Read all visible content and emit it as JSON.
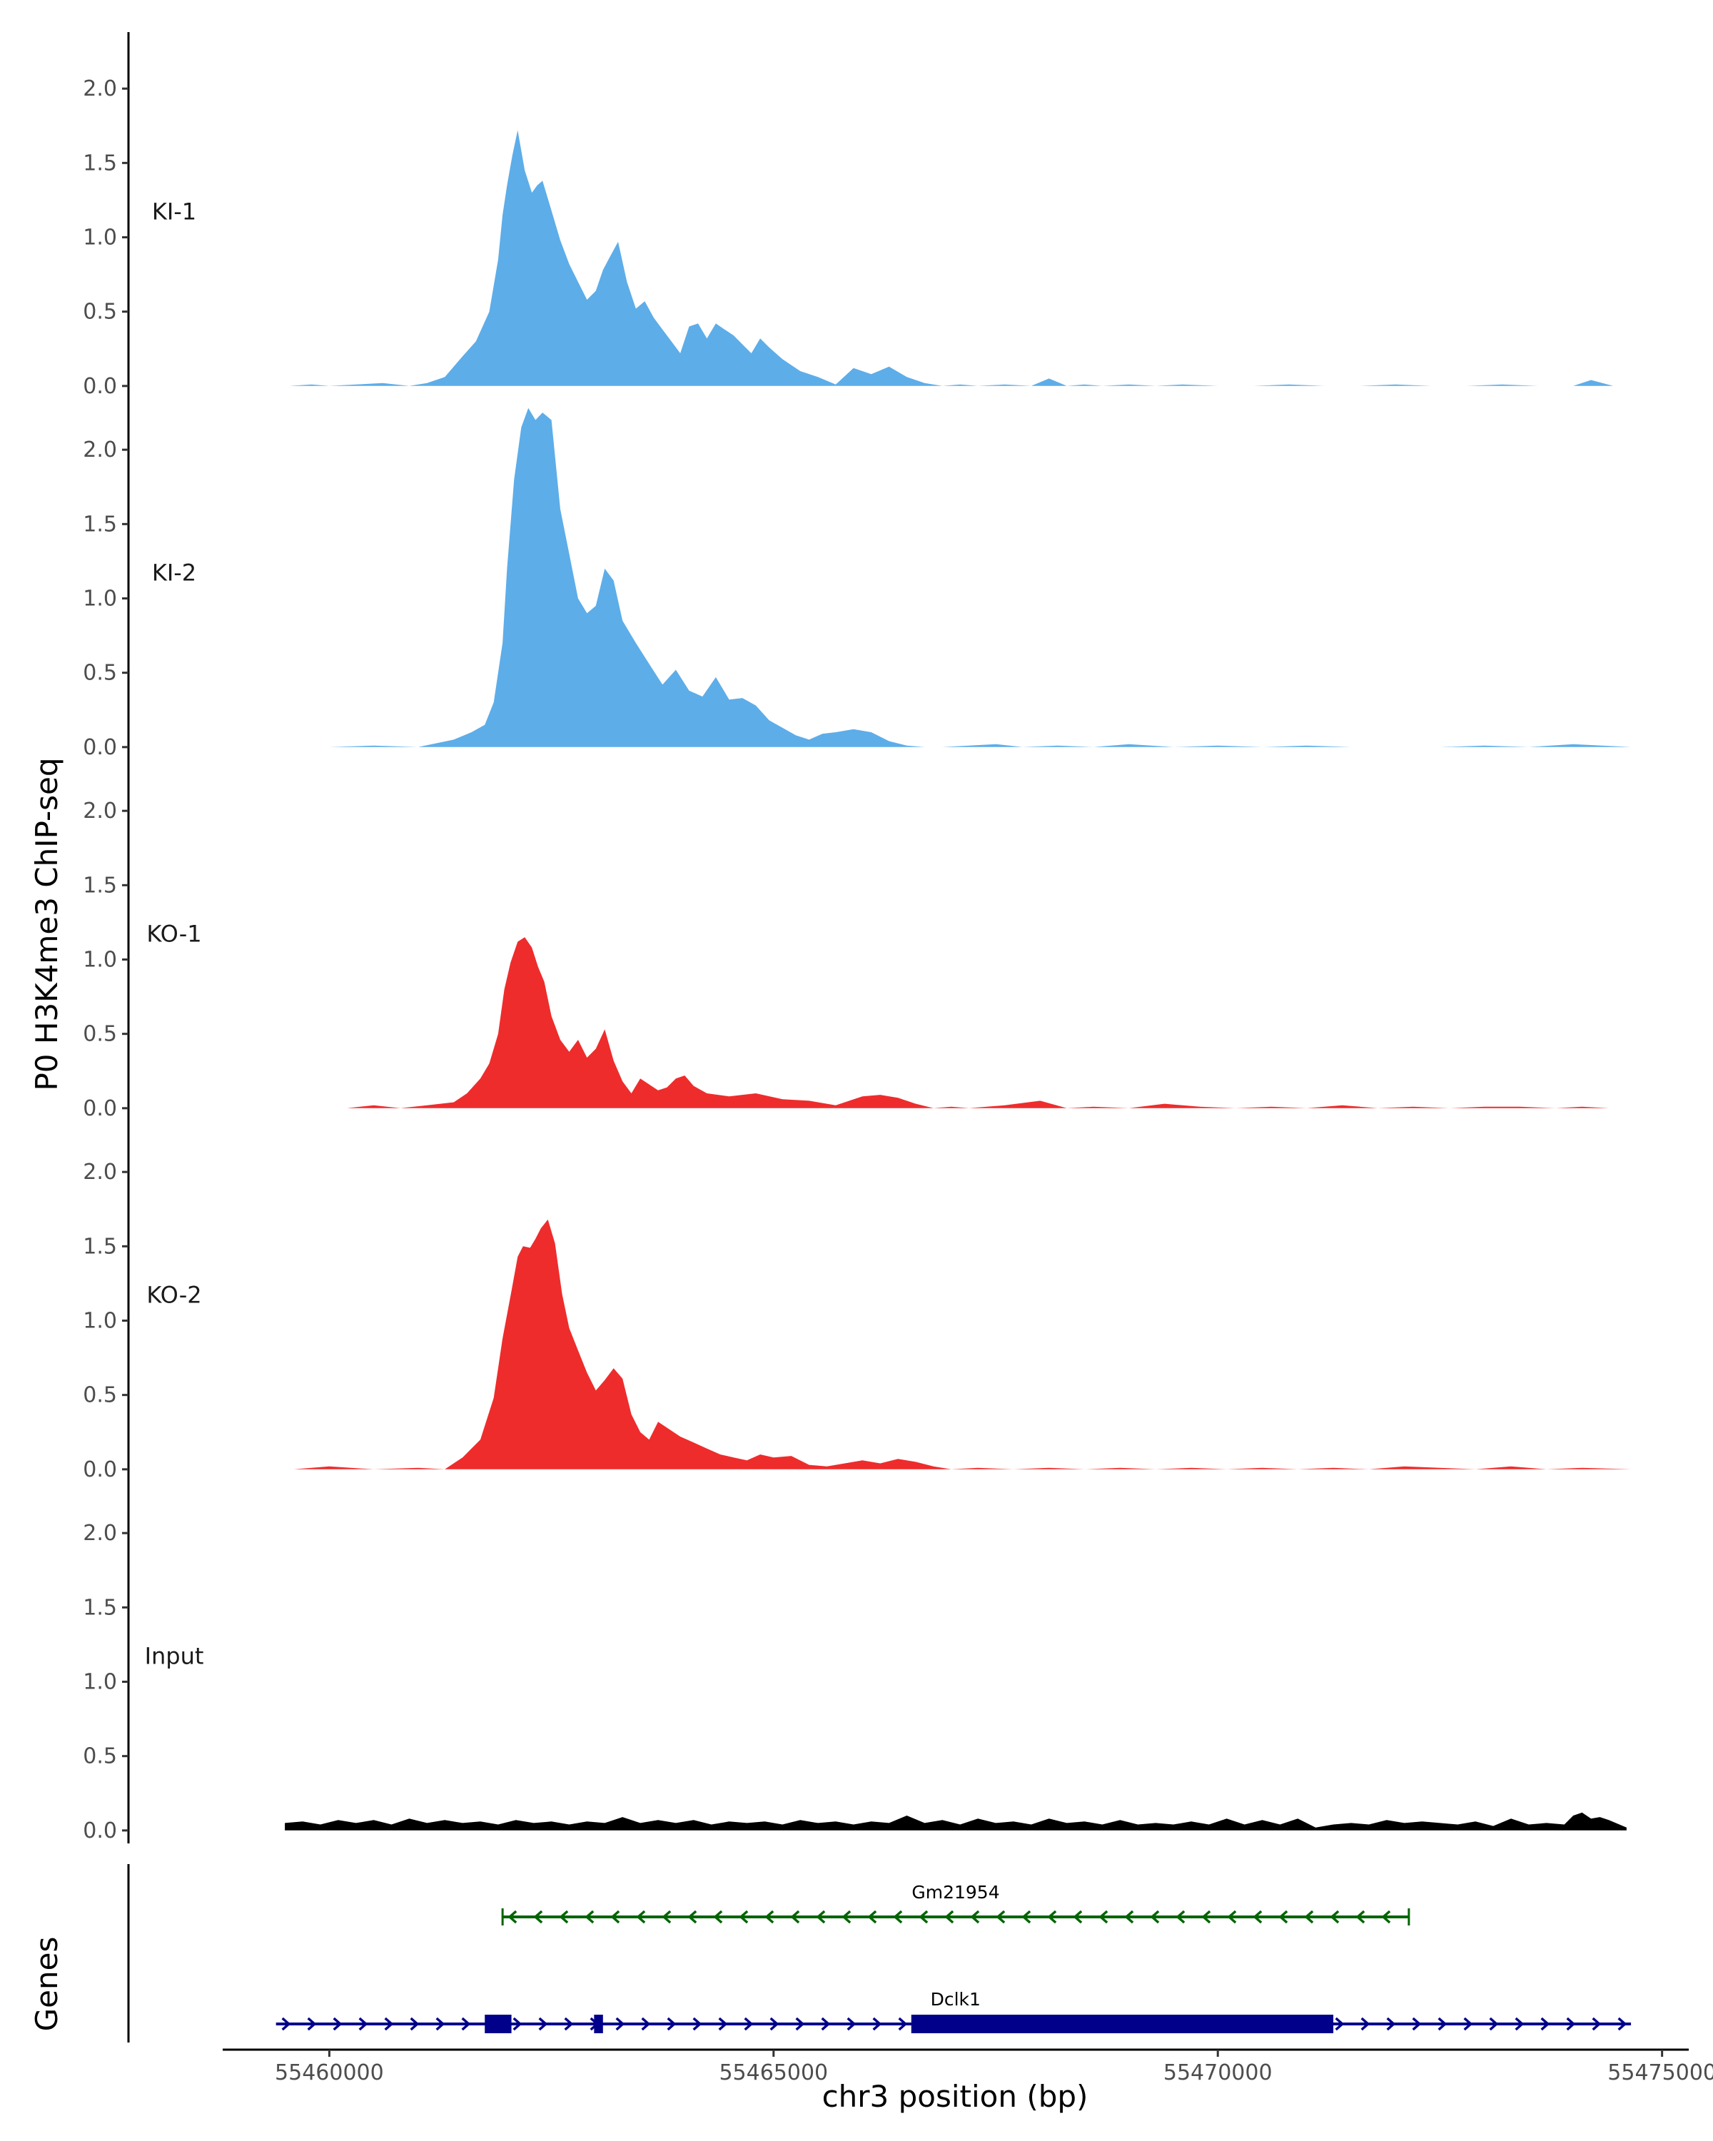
{
  "chart_data": {
    "type": "area",
    "y_axis_title": "P0 H3K4me3 ChIP-seq",
    "x_axis_title": "chr3 position (bp)",
    "x_ticks": [
      55460000,
      55465000,
      55470000,
      55475000
    ],
    "x_tick_labels": [
      "55460000",
      "55465000",
      "55470000",
      "55475000"
    ],
    "xlim": [
      55458800,
      55475300
    ],
    "ylim": [
      -0.02,
      2.38
    ],
    "y_ticks": [
      0.0,
      0.5,
      1.0,
      1.5,
      2.0
    ],
    "y_tick_labels": [
      "0.0",
      "0.5",
      "1.0",
      "1.5",
      "2.0"
    ],
    "grid": false,
    "series": [
      {
        "name": "KI-1",
        "color": "#5dade9",
        "x": [
          55459550,
          55459800,
          55460000,
          55460300,
          55460600,
          55460900,
          55461100,
          55461300,
          55461500,
          55461650,
          55461800,
          55461900,
          55461950,
          55462000,
          55462060,
          55462120,
          55462200,
          55462280,
          55462340,
          55462400,
          55462500,
          55462600,
          55462700,
          55462800,
          55462900,
          55463000,
          55463080,
          55463150,
          55463250,
          55463350,
          55463450,
          55463550,
          55463650,
          55463750,
          55463850,
          55463950,
          55464050,
          55464150,
          55464250,
          55464350,
          55464450,
          55464550,
          55464650,
          55464750,
          55464850,
          55464950,
          55465100,
          55465300,
          55465500,
          55465700,
          55465900,
          55466100,
          55466300,
          55466500,
          55466700,
          55466900,
          55467100,
          55467300,
          55467600,
          55467900,
          55468100,
          55468300,
          55468500,
          55468700,
          55469000,
          55469300,
          55469600,
          55470000,
          55470400,
          55470800,
          55471200,
          55471600,
          55472000,
          55472400,
          55472800,
          55473200,
          55473600,
          55474000,
          55474200,
          55474450
        ],
        "y": [
          0.0,
          0.01,
          0.0,
          0.01,
          0.02,
          0.0,
          0.02,
          0.06,
          0.2,
          0.3,
          0.5,
          0.85,
          1.15,
          1.35,
          1.55,
          1.72,
          1.45,
          1.3,
          1.35,
          1.38,
          1.18,
          0.98,
          0.82,
          0.7,
          0.58,
          0.64,
          0.78,
          0.86,
          0.97,
          0.7,
          0.52,
          0.57,
          0.46,
          0.38,
          0.3,
          0.22,
          0.4,
          0.42,
          0.32,
          0.42,
          0.38,
          0.34,
          0.28,
          0.22,
          0.32,
          0.26,
          0.18,
          0.1,
          0.06,
          0.01,
          0.12,
          0.08,
          0.13,
          0.06,
          0.02,
          0.0,
          0.01,
          0.0,
          0.01,
          0.0,
          0.05,
          0.0,
          0.01,
          0.0,
          0.01,
          0.0,
          0.01,
          0.0,
          0.0,
          0.01,
          0.0,
          0.0,
          0.01,
          0.0,
          0.0,
          0.01,
          0.0,
          0.0,
          0.04,
          0.0
        ]
      },
      {
        "name": "KI-2",
        "color": "#5dade9",
        "x": [
          55460000,
          55460500,
          55461000,
          55461400,
          55461600,
          55461750,
          55461850,
          55461950,
          55462000,
          55462080,
          55462160,
          55462240,
          55462320,
          55462400,
          55462500,
          55462600,
          55462700,
          55462800,
          55462900,
          55463000,
          55463100,
          55463200,
          55463300,
          55463450,
          55463600,
          55463750,
          55463900,
          55464050,
          55464200,
          55464350,
          55464500,
          55464650,
          55464800,
          55464950,
          55465100,
          55465250,
          55465400,
          55465550,
          55465700,
          55465900,
          55466100,
          55466300,
          55466500,
          55466700,
          55466900,
          55467200,
          55467500,
          55467800,
          55468200,
          55468600,
          55469000,
          55469500,
          55470000,
          55470500,
          55471000,
          55471500,
          55472000,
          55472500,
          55473000,
          55473500,
          55474000,
          55474650
        ],
        "y": [
          0.0,
          0.01,
          0.0,
          0.05,
          0.1,
          0.15,
          0.3,
          0.7,
          1.2,
          1.8,
          2.15,
          2.28,
          2.2,
          2.25,
          2.2,
          1.6,
          1.3,
          1.0,
          0.9,
          0.95,
          1.2,
          1.12,
          0.85,
          0.7,
          0.56,
          0.42,
          0.52,
          0.38,
          0.34,
          0.47,
          0.32,
          0.33,
          0.28,
          0.18,
          0.13,
          0.08,
          0.05,
          0.09,
          0.1,
          0.12,
          0.1,
          0.04,
          0.01,
          0.0,
          0.0,
          0.01,
          0.02,
          0.0,
          0.01,
          0.0,
          0.02,
          0.0,
          0.01,
          0.0,
          0.01,
          0.0,
          0.0,
          0.0,
          0.01,
          0.0,
          0.02,
          0.0
        ]
      },
      {
        "name": "KO-1",
        "color": "#ee2c2c",
        "x": [
          55459500,
          55459900,
          55460200,
          55460500,
          55460800,
          55461100,
          55461400,
          55461550,
          55461700,
          55461800,
          55461900,
          55461970,
          55462040,
          55462120,
          55462200,
          55462280,
          55462350,
          55462420,
          55462500,
          55462600,
          55462700,
          55462800,
          55462900,
          55463000,
          55463100,
          55463200,
          55463300,
          55463400,
          55463500,
          55463600,
          55463700,
          55463800,
          55463900,
          55464000,
          55464100,
          55464250,
          55464500,
          55464800,
          55465100,
          55465400,
          55465700,
          55466000,
          55466200,
          55466400,
          55466600,
          55466800,
          55467000,
          55467200,
          55467600,
          55468000,
          55468300,
          55468600,
          55469000,
          55469400,
          55469800,
          55470200,
          55470600,
          55471000,
          55471400,
          55471800,
          55472200,
          55472600,
          55473000,
          55473400,
          55473800,
          55474100,
          55474400
        ],
        "y": [
          0.0,
          0.0,
          0.0,
          0.02,
          0.0,
          0.02,
          0.04,
          0.1,
          0.2,
          0.3,
          0.5,
          0.8,
          0.98,
          1.12,
          1.15,
          1.08,
          0.95,
          0.85,
          0.62,
          0.46,
          0.38,
          0.46,
          0.34,
          0.4,
          0.53,
          0.32,
          0.18,
          0.1,
          0.2,
          0.16,
          0.12,
          0.14,
          0.2,
          0.22,
          0.15,
          0.1,
          0.08,
          0.1,
          0.06,
          0.05,
          0.02,
          0.08,
          0.09,
          0.07,
          0.03,
          0.0,
          0.01,
          0.0,
          0.02,
          0.05,
          0.0,
          0.01,
          0.0,
          0.03,
          0.01,
          0.0,
          0.01,
          0.0,
          0.02,
          0.0,
          0.01,
          0.0,
          0.01,
          0.01,
          0.0,
          0.01,
          0.0
        ]
      },
      {
        "name": "KO-2",
        "color": "#ee2c2c",
        "x": [
          55459600,
          55460000,
          55460500,
          55461000,
          55461300,
          55461500,
          55461700,
          55461850,
          55461950,
          55462050,
          55462120,
          55462180,
          55462260,
          55462320,
          55462380,
          55462460,
          55462540,
          55462620,
          55462700,
          55462800,
          55462900,
          55463000,
          55463100,
          55463200,
          55463300,
          55463400,
          55463500,
          55463600,
          55463700,
          55463800,
          55463950,
          55464100,
          55464250,
          55464400,
          55464550,
          55464700,
          55464850,
          55465000,
          55465200,
          55465400,
          55465600,
          55465800,
          55466000,
          55466200,
          55466400,
          55466600,
          55466800,
          55467000,
          55467300,
          55467700,
          55468100,
          55468500,
          55468900,
          55469300,
          55469700,
          55470100,
          55470500,
          55470900,
          55471300,
          55471700,
          55472100,
          55472500,
          55472900,
          55473300,
          55473700,
          55474100,
          55474650
        ],
        "y": [
          0.0,
          0.02,
          0.0,
          0.01,
          0.0,
          0.08,
          0.2,
          0.48,
          0.88,
          1.2,
          1.43,
          1.5,
          1.49,
          1.55,
          1.62,
          1.68,
          1.52,
          1.18,
          0.95,
          0.8,
          0.65,
          0.53,
          0.6,
          0.68,
          0.61,
          0.37,
          0.25,
          0.2,
          0.32,
          0.28,
          0.22,
          0.18,
          0.14,
          0.1,
          0.08,
          0.06,
          0.1,
          0.08,
          0.09,
          0.03,
          0.02,
          0.04,
          0.06,
          0.04,
          0.07,
          0.05,
          0.02,
          0.0,
          0.01,
          0.0,
          0.01,
          0.0,
          0.01,
          0.0,
          0.01,
          0.0,
          0.01,
          0.0,
          0.01,
          0.0,
          0.02,
          0.01,
          0.0,
          0.02,
          0.0,
          0.01,
          0.0
        ]
      },
      {
        "name": "Input",
        "color": "#000000",
        "x": [
          55459500,
          55459700,
          55459900,
          55460100,
          55460300,
          55460500,
          55460700,
          55460900,
          55461100,
          55461300,
          55461500,
          55461700,
          55461900,
          55462100,
          55462300,
          55462500,
          55462700,
          55462900,
          55463100,
          55463300,
          55463500,
          55463700,
          55463900,
          55464100,
          55464300,
          55464500,
          55464700,
          55464900,
          55465100,
          55465300,
          55465500,
          55465700,
          55465900,
          55466100,
          55466300,
          55466500,
          55466700,
          55466900,
          55467100,
          55467300,
          55467500,
          55467700,
          55467900,
          55468100,
          55468300,
          55468500,
          55468700,
          55468900,
          55469100,
          55469300,
          55469500,
          55469700,
          55469900,
          55470100,
          55470300,
          55470500,
          55470700,
          55470900,
          55471100,
          55471300,
          55471500,
          55471700,
          55471900,
          55472100,
          55472300,
          55472500,
          55472700,
          55472900,
          55473100,
          55473300,
          55473500,
          55473700,
          55473900,
          55474000,
          55474100,
          55474200,
          55474300,
          55474400,
          55474600
        ],
        "y": [
          0.05,
          0.06,
          0.04,
          0.07,
          0.05,
          0.07,
          0.04,
          0.08,
          0.05,
          0.07,
          0.05,
          0.06,
          0.04,
          0.07,
          0.05,
          0.06,
          0.04,
          0.06,
          0.05,
          0.09,
          0.05,
          0.07,
          0.05,
          0.07,
          0.04,
          0.06,
          0.05,
          0.06,
          0.04,
          0.07,
          0.05,
          0.06,
          0.04,
          0.06,
          0.05,
          0.1,
          0.05,
          0.07,
          0.04,
          0.08,
          0.05,
          0.06,
          0.04,
          0.08,
          0.05,
          0.06,
          0.04,
          0.07,
          0.04,
          0.05,
          0.04,
          0.06,
          0.04,
          0.08,
          0.04,
          0.07,
          0.04,
          0.08,
          0.02,
          0.04,
          0.05,
          0.04,
          0.07,
          0.05,
          0.06,
          0.05,
          0.04,
          0.06,
          0.03,
          0.08,
          0.04,
          0.05,
          0.04,
          0.1,
          0.12,
          0.08,
          0.09,
          0.07,
          0.02
        ]
      }
    ],
    "genes_track": {
      "title": "Genes",
      "genes": [
        {
          "name": "Gm21954",
          "strand": "-",
          "start": 55461950,
          "end": 55472150,
          "color": "#006400",
          "exons": []
        },
        {
          "name": "Dclk1",
          "strand": "+",
          "start": 55459400,
          "end": 55474650,
          "color": "#00008b",
          "exons": [
            [
              55461750,
              55462050
            ],
            [
              55462980,
              55463080
            ],
            [
              55466550,
              55471300
            ]
          ]
        }
      ]
    }
  }
}
